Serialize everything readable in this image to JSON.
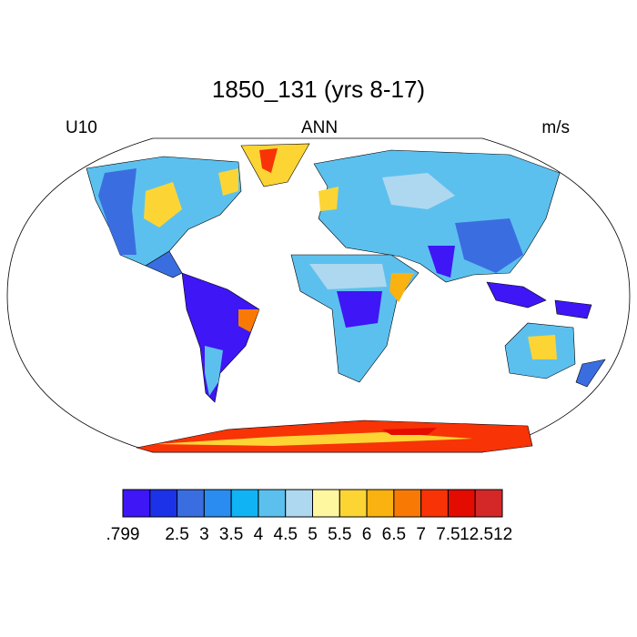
{
  "title": "1850_131 (yrs 8-17)",
  "left_string": "U10",
  "center_string": "ANN",
  "right_string": "m/s",
  "colorbar": {
    "colors": [
      "#3f16f5",
      "#1c32e8",
      "#3a6ee0",
      "#2a8cf0",
      "#10b4f5",
      "#5cc0ee",
      "#aed8f0",
      "#fff7a0",
      "#fcd535",
      "#f9b20f",
      "#f87a05",
      "#f83306",
      "#e40b00",
      "#d42828"
    ],
    "labels": [
      ".799",
      "2.5",
      "3",
      "3.5",
      "4",
      "4.5",
      "5",
      "5.5",
      "6",
      "6.5",
      "7",
      "7.5",
      "12.512"
    ]
  }
}
